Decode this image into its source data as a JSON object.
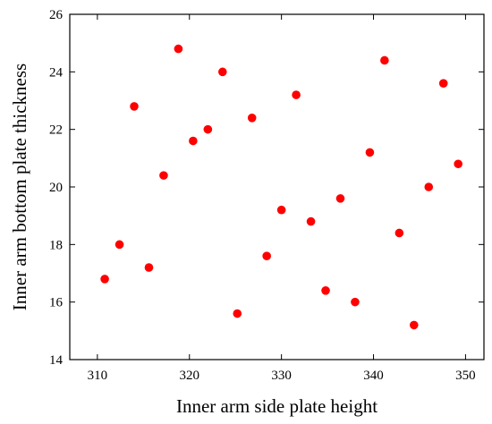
{
  "chart_data": {
    "type": "scatter",
    "xlabel": "Inner arm side plate height",
    "ylabel": "Inner arm bottom plate thickness",
    "xlim": [
      307,
      352
    ],
    "ylim": [
      14,
      26
    ],
    "xticks": [
      310,
      320,
      330,
      340,
      350
    ],
    "yticks": [
      14,
      16,
      18,
      20,
      22,
      24,
      26
    ],
    "grid": false,
    "marker_color": "#ff0000",
    "points": [
      {
        "x": 310.8,
        "y": 16.8
      },
      {
        "x": 312.4,
        "y": 18.0
      },
      {
        "x": 314.0,
        "y": 22.8
      },
      {
        "x": 315.6,
        "y": 17.2
      },
      {
        "x": 317.2,
        "y": 20.4
      },
      {
        "x": 318.8,
        "y": 24.8
      },
      {
        "x": 320.4,
        "y": 21.6
      },
      {
        "x": 322.0,
        "y": 22.0
      },
      {
        "x": 323.6,
        "y": 24.0
      },
      {
        "x": 325.2,
        "y": 15.6
      },
      {
        "x": 326.8,
        "y": 22.4
      },
      {
        "x": 328.4,
        "y": 17.6
      },
      {
        "x": 330.0,
        "y": 19.2
      },
      {
        "x": 331.6,
        "y": 23.2
      },
      {
        "x": 333.2,
        "y": 18.8
      },
      {
        "x": 334.8,
        "y": 16.4
      },
      {
        "x": 336.4,
        "y": 19.6
      },
      {
        "x": 338.0,
        "y": 16.0
      },
      {
        "x": 339.6,
        "y": 21.2
      },
      {
        "x": 341.2,
        "y": 24.4
      },
      {
        "x": 342.8,
        "y": 18.4
      },
      {
        "x": 344.4,
        "y": 15.2
      },
      {
        "x": 346.0,
        "y": 20.0
      },
      {
        "x": 347.6,
        "y": 23.6
      },
      {
        "x": 349.2,
        "y": 20.8
      }
    ]
  }
}
